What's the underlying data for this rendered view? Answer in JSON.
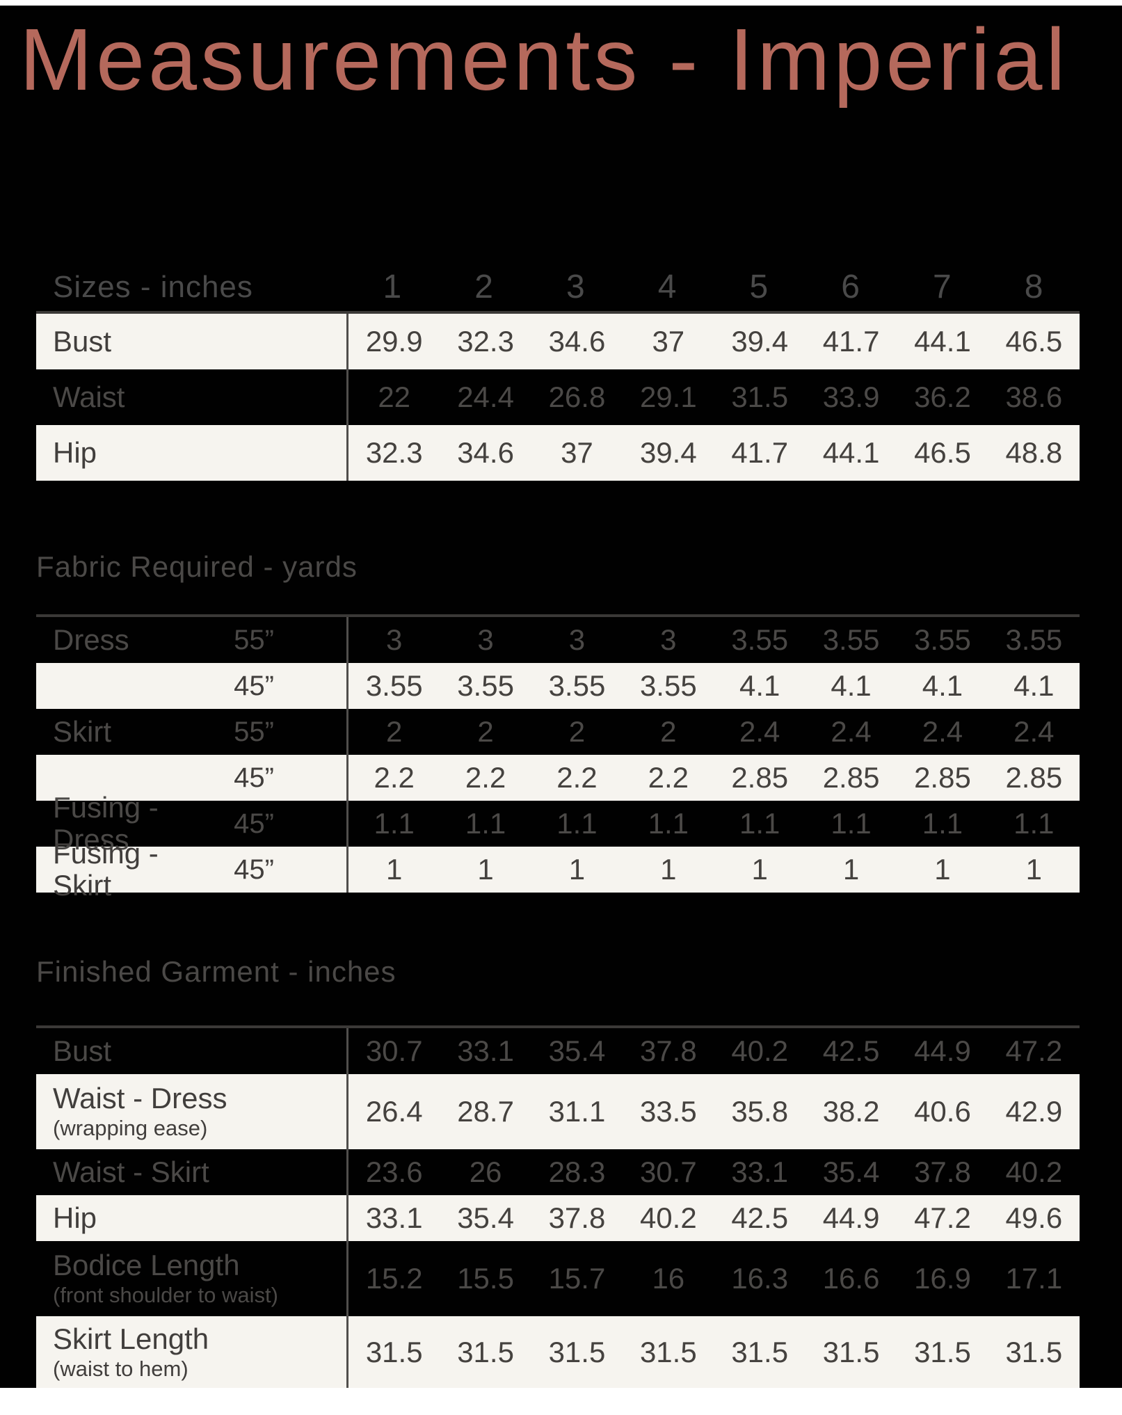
{
  "title": "Measurements - Imperial",
  "colors": {
    "accent_title": "#b5695c",
    "page_background": "#ffffff",
    "card_background": "#010101",
    "light_row_background": "#f6f4ef",
    "light_row_text": "#413e3c",
    "dark_row_text": "#4b4947",
    "table_border": "#3b3937"
  },
  "sizes_table": {
    "header_label": "Sizes - inches",
    "size_columns": [
      "1",
      "2",
      "3",
      "4",
      "5",
      "6",
      "7",
      "8"
    ],
    "rows": [
      {
        "name": "Bust",
        "theme": "light",
        "values": [
          "29.9",
          "32.3",
          "34.6",
          "37",
          "39.4",
          "41.7",
          "44.1",
          "46.5"
        ]
      },
      {
        "name": "Waist",
        "theme": "dark",
        "values": [
          "22",
          "24.4",
          "26.8",
          "29.1",
          "31.5",
          "33.9",
          "36.2",
          "38.6"
        ]
      },
      {
        "name": "Hip",
        "theme": "light",
        "values": [
          "32.3",
          "34.6",
          "37",
          "39.4",
          "41.7",
          "44.1",
          "46.5",
          "48.8"
        ]
      }
    ]
  },
  "fabric_table": {
    "heading": "Fabric Required - yards",
    "rows": [
      {
        "name": "Dress",
        "width": "55”",
        "theme": "dark",
        "values": [
          "3",
          "3",
          "3",
          "3",
          "3.55",
          "3.55",
          "3.55",
          "3.55"
        ]
      },
      {
        "name": "",
        "width": "45”",
        "theme": "light",
        "values": [
          "3.55",
          "3.55",
          "3.55",
          "3.55",
          "4.1",
          "4.1",
          "4.1",
          "4.1"
        ]
      },
      {
        "name": "Skirt",
        "width": "55”",
        "theme": "dark",
        "values": [
          "2",
          "2",
          "2",
          "2",
          "2.4",
          "2.4",
          "2.4",
          "2.4"
        ]
      },
      {
        "name": "",
        "width": "45”",
        "theme": "light",
        "values": [
          "2.2",
          "2.2",
          "2.2",
          "2.2",
          "2.85",
          "2.85",
          "2.85",
          "2.85"
        ]
      },
      {
        "name": "Fusing - Dress",
        "width": "45”",
        "theme": "dark",
        "values": [
          "1.1",
          "1.1",
          "1.1",
          "1.1",
          "1.1",
          "1.1",
          "1.1",
          "1.1"
        ]
      },
      {
        "name": "Fusing -Skirt",
        "width": "45”",
        "theme": "light",
        "values": [
          "1",
          "1",
          "1",
          "1",
          "1",
          "1",
          "1",
          "1"
        ]
      }
    ]
  },
  "finished_table": {
    "heading": "Finished Garment - inches",
    "rows": [
      {
        "name": "Bust",
        "sub": "",
        "theme": "dark",
        "values": [
          "30.7",
          "33.1",
          "35.4",
          "37.8",
          "40.2",
          "42.5",
          "44.9",
          "47.2"
        ]
      },
      {
        "name": "Waist - Dress",
        "sub": "(wrapping ease)",
        "theme": "light",
        "values": [
          "26.4",
          "28.7",
          "31.1",
          "33.5",
          "35.8",
          "38.2",
          "40.6",
          "42.9"
        ]
      },
      {
        "name": "Waist - Skirt",
        "sub": "",
        "theme": "dark",
        "values": [
          "23.6",
          "26",
          "28.3",
          "30.7",
          "33.1",
          "35.4",
          "37.8",
          "40.2"
        ]
      },
      {
        "name": "Hip",
        "sub": "",
        "theme": "light",
        "values": [
          "33.1",
          "35.4",
          "37.8",
          "40.2",
          "42.5",
          "44.9",
          "47.2",
          "49.6"
        ]
      },
      {
        "name": "Bodice Length",
        "sub": "(front shoulder to waist)",
        "theme": "dark",
        "values": [
          "15.2",
          "15.5",
          "15.7",
          "16",
          "16.3",
          "16.6",
          "16.9",
          "17.1"
        ]
      },
      {
        "name": "Skirt Length",
        "sub": "(waist to hem)",
        "theme": "light",
        "values": [
          "31.5",
          "31.5",
          "31.5",
          "31.5",
          "31.5",
          "31.5",
          "31.5",
          "31.5"
        ]
      }
    ]
  }
}
